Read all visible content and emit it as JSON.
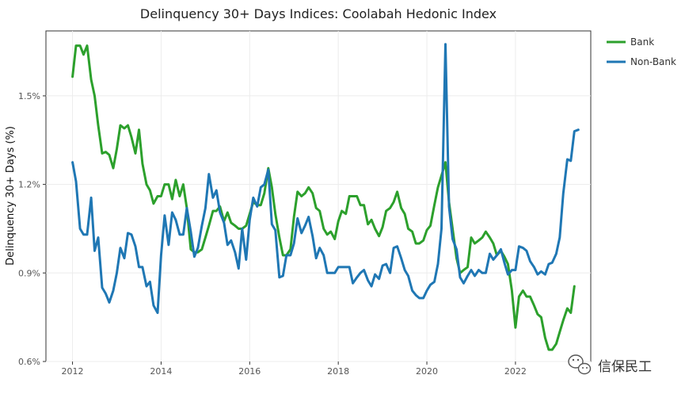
{
  "chart_data": {
    "type": "line",
    "title": "Delinquency 30+ Days Indices: Coolabah Hedonic Index",
    "xlabel": "",
    "ylabel": "Delinquency 30+ Days (%)",
    "xlim": [
      2011.4,
      2023.7
    ],
    "ylim": [
      0.6,
      1.72
    ],
    "x_ticks": [
      2012,
      2014,
      2016,
      2018,
      2020,
      2022
    ],
    "x_tick_labels": [
      "2012",
      "2014",
      "2016",
      "2018",
      "2020",
      "2022"
    ],
    "y_ticks": [
      0.6,
      0.9,
      1.2,
      1.5
    ],
    "y_tick_labels": [
      "0.6%",
      "0.9%",
      "1.2%",
      "1.5%"
    ],
    "grid": true,
    "legend_position": "top-right",
    "series": [
      {
        "name": "Bank",
        "color": "#2ca02c",
        "points": [
          [
            2012.0,
            1.565
          ],
          [
            2012.08,
            1.67
          ],
          [
            2012.17,
            1.67
          ],
          [
            2012.25,
            1.64
          ],
          [
            2012.33,
            1.67
          ],
          [
            2012.42,
            1.555
          ],
          [
            2012.5,
            1.5
          ],
          [
            2012.58,
            1.4
          ],
          [
            2012.67,
            1.305
          ],
          [
            2012.75,
            1.31
          ],
          [
            2012.83,
            1.3
          ],
          [
            2012.92,
            1.255
          ],
          [
            2013.0,
            1.32
          ],
          [
            2013.08,
            1.4
          ],
          [
            2013.17,
            1.39
          ],
          [
            2013.25,
            1.4
          ],
          [
            2013.33,
            1.36
          ],
          [
            2013.42,
            1.305
          ],
          [
            2013.5,
            1.385
          ],
          [
            2013.58,
            1.27
          ],
          [
            2013.67,
            1.2
          ],
          [
            2013.75,
            1.18
          ],
          [
            2013.83,
            1.135
          ],
          [
            2013.92,
            1.16
          ],
          [
            2014.0,
            1.16
          ],
          [
            2014.08,
            1.2
          ],
          [
            2014.17,
            1.2
          ],
          [
            2014.25,
            1.15
          ],
          [
            2014.33,
            1.215
          ],
          [
            2014.42,
            1.16
          ],
          [
            2014.5,
            1.2
          ],
          [
            2014.58,
            1.12
          ],
          [
            2014.67,
            0.98
          ],
          [
            2014.75,
            0.97
          ],
          [
            2014.83,
            0.97
          ],
          [
            2014.92,
            0.98
          ],
          [
            2015.0,
            1.02
          ],
          [
            2015.08,
            1.06
          ],
          [
            2015.17,
            1.11
          ],
          [
            2015.25,
            1.11
          ],
          [
            2015.33,
            1.125
          ],
          [
            2015.42,
            1.075
          ],
          [
            2015.5,
            1.105
          ],
          [
            2015.58,
            1.07
          ],
          [
            2015.67,
            1.06
          ],
          [
            2015.75,
            1.05
          ],
          [
            2015.83,
            1.05
          ],
          [
            2015.92,
            1.06
          ],
          [
            2016.0,
            1.1
          ],
          [
            2016.08,
            1.14
          ],
          [
            2016.17,
            1.13
          ],
          [
            2016.25,
            1.13
          ],
          [
            2016.33,
            1.17
          ],
          [
            2016.42,
            1.255
          ],
          [
            2016.5,
            1.19
          ],
          [
            2016.58,
            1.1
          ],
          [
            2016.67,
            1.02
          ],
          [
            2016.75,
            0.96
          ],
          [
            2016.83,
            0.96
          ],
          [
            2016.92,
            0.98
          ],
          [
            2017.0,
            1.09
          ],
          [
            2017.08,
            1.175
          ],
          [
            2017.17,
            1.16
          ],
          [
            2017.25,
            1.17
          ],
          [
            2017.33,
            1.19
          ],
          [
            2017.42,
            1.17
          ],
          [
            2017.5,
            1.12
          ],
          [
            2017.58,
            1.11
          ],
          [
            2017.67,
            1.05
          ],
          [
            2017.75,
            1.03
          ],
          [
            2017.83,
            1.04
          ],
          [
            2017.92,
            1.015
          ],
          [
            2018.0,
            1.075
          ],
          [
            2018.08,
            1.11
          ],
          [
            2018.17,
            1.1
          ],
          [
            2018.25,
            1.16
          ],
          [
            2018.33,
            1.16
          ],
          [
            2018.42,
            1.16
          ],
          [
            2018.5,
            1.13
          ],
          [
            2018.58,
            1.13
          ],
          [
            2018.67,
            1.065
          ],
          [
            2018.75,
            1.08
          ],
          [
            2018.83,
            1.05
          ],
          [
            2018.92,
            1.025
          ],
          [
            2019.0,
            1.055
          ],
          [
            2019.08,
            1.11
          ],
          [
            2019.17,
            1.12
          ],
          [
            2019.25,
            1.14
          ],
          [
            2019.33,
            1.175
          ],
          [
            2019.42,
            1.12
          ],
          [
            2019.5,
            1.1
          ],
          [
            2019.58,
            1.05
          ],
          [
            2019.67,
            1.04
          ],
          [
            2019.75,
            1.0
          ],
          [
            2019.83,
            1.0
          ],
          [
            2019.92,
            1.01
          ],
          [
            2020.0,
            1.045
          ],
          [
            2020.08,
            1.06
          ],
          [
            2020.17,
            1.13
          ],
          [
            2020.25,
            1.19
          ],
          [
            2020.33,
            1.23
          ],
          [
            2020.42,
            1.275
          ],
          [
            2020.5,
            1.14
          ],
          [
            2020.58,
            1.05
          ],
          [
            2020.67,
            0.95
          ],
          [
            2020.75,
            0.9
          ],
          [
            2020.83,
            0.91
          ],
          [
            2020.92,
            0.92
          ],
          [
            2021.0,
            1.02
          ],
          [
            2021.08,
            1.0
          ],
          [
            2021.17,
            1.01
          ],
          [
            2021.25,
            1.02
          ],
          [
            2021.33,
            1.04
          ],
          [
            2021.42,
            1.02
          ],
          [
            2021.5,
            1.0
          ],
          [
            2021.58,
            0.96
          ],
          [
            2021.67,
            0.975
          ],
          [
            2021.75,
            0.955
          ],
          [
            2021.83,
            0.93
          ],
          [
            2021.92,
            0.84
          ],
          [
            2022.0,
            0.715
          ],
          [
            2022.08,
            0.82
          ],
          [
            2022.17,
            0.84
          ],
          [
            2022.25,
            0.82
          ],
          [
            2022.33,
            0.82
          ],
          [
            2022.42,
            0.79
          ],
          [
            2022.5,
            0.76
          ],
          [
            2022.58,
            0.75
          ],
          [
            2022.67,
            0.68
          ],
          [
            2022.75,
            0.64
          ],
          [
            2022.83,
            0.64
          ],
          [
            2022.92,
            0.66
          ],
          [
            2023.0,
            0.7
          ],
          [
            2023.08,
            0.74
          ],
          [
            2023.17,
            0.78
          ],
          [
            2023.25,
            0.765
          ],
          [
            2023.33,
            0.855
          ]
        ]
      },
      {
        "name": "Non-Bank",
        "color": "#1f77b4",
        "points": [
          [
            2012.0,
            1.275
          ],
          [
            2012.08,
            1.21
          ],
          [
            2012.17,
            1.05
          ],
          [
            2012.25,
            1.03
          ],
          [
            2012.33,
            1.03
          ],
          [
            2012.42,
            1.155
          ],
          [
            2012.5,
            0.975
          ],
          [
            2012.58,
            1.02
          ],
          [
            2012.67,
            0.85
          ],
          [
            2012.75,
            0.83
          ],
          [
            2012.83,
            0.8
          ],
          [
            2012.92,
            0.84
          ],
          [
            2013.0,
            0.9
          ],
          [
            2013.08,
            0.985
          ],
          [
            2013.17,
            0.95
          ],
          [
            2013.25,
            1.035
          ],
          [
            2013.33,
            1.03
          ],
          [
            2013.42,
            0.99
          ],
          [
            2013.5,
            0.92
          ],
          [
            2013.58,
            0.92
          ],
          [
            2013.67,
            0.855
          ],
          [
            2013.75,
            0.87
          ],
          [
            2013.83,
            0.79
          ],
          [
            2013.92,
            0.765
          ],
          [
            2014.0,
            0.96
          ],
          [
            2014.08,
            1.095
          ],
          [
            2014.17,
            0.995
          ],
          [
            2014.25,
            1.105
          ],
          [
            2014.33,
            1.08
          ],
          [
            2014.42,
            1.03
          ],
          [
            2014.5,
            1.03
          ],
          [
            2014.58,
            1.12
          ],
          [
            2014.67,
            1.04
          ],
          [
            2014.75,
            0.955
          ],
          [
            2014.83,
            0.985
          ],
          [
            2014.92,
            1.06
          ],
          [
            2015.0,
            1.12
          ],
          [
            2015.08,
            1.235
          ],
          [
            2015.17,
            1.155
          ],
          [
            2015.25,
            1.18
          ],
          [
            2015.33,
            1.105
          ],
          [
            2015.42,
            1.07
          ],
          [
            2015.5,
            0.995
          ],
          [
            2015.58,
            1.01
          ],
          [
            2015.67,
            0.97
          ],
          [
            2015.75,
            0.915
          ],
          [
            2015.83,
            1.05
          ],
          [
            2015.92,
            0.945
          ],
          [
            2016.0,
            1.08
          ],
          [
            2016.08,
            1.155
          ],
          [
            2016.17,
            1.125
          ],
          [
            2016.25,
            1.19
          ],
          [
            2016.33,
            1.2
          ],
          [
            2016.42,
            1.25
          ],
          [
            2016.5,
            1.065
          ],
          [
            2016.58,
            1.045
          ],
          [
            2016.67,
            0.885
          ],
          [
            2016.75,
            0.89
          ],
          [
            2016.83,
            0.96
          ],
          [
            2016.92,
            0.96
          ],
          [
            2017.0,
            1.0
          ],
          [
            2017.08,
            1.085
          ],
          [
            2017.17,
            1.035
          ],
          [
            2017.25,
            1.06
          ],
          [
            2017.33,
            1.09
          ],
          [
            2017.42,
            1.025
          ],
          [
            2017.5,
            0.95
          ],
          [
            2017.58,
            0.985
          ],
          [
            2017.67,
            0.96
          ],
          [
            2017.75,
            0.9
          ],
          [
            2017.83,
            0.9
          ],
          [
            2017.92,
            0.9
          ],
          [
            2018.0,
            0.92
          ],
          [
            2018.08,
            0.92
          ],
          [
            2018.17,
            0.92
          ],
          [
            2018.25,
            0.92
          ],
          [
            2018.33,
            0.865
          ],
          [
            2018.42,
            0.885
          ],
          [
            2018.5,
            0.9
          ],
          [
            2018.58,
            0.91
          ],
          [
            2018.67,
            0.875
          ],
          [
            2018.75,
            0.855
          ],
          [
            2018.83,
            0.895
          ],
          [
            2018.92,
            0.88
          ],
          [
            2019.0,
            0.925
          ],
          [
            2019.08,
            0.93
          ],
          [
            2019.17,
            0.9
          ],
          [
            2019.25,
            0.985
          ],
          [
            2019.33,
            0.99
          ],
          [
            2019.42,
            0.95
          ],
          [
            2019.5,
            0.91
          ],
          [
            2019.58,
            0.89
          ],
          [
            2019.67,
            0.84
          ],
          [
            2019.75,
            0.825
          ],
          [
            2019.83,
            0.815
          ],
          [
            2019.92,
            0.815
          ],
          [
            2020.0,
            0.84
          ],
          [
            2020.08,
            0.86
          ],
          [
            2020.17,
            0.87
          ],
          [
            2020.25,
            0.93
          ],
          [
            2020.33,
            1.05
          ],
          [
            2020.42,
            1.675
          ],
          [
            2020.5,
            1.125
          ],
          [
            2020.58,
            1.015
          ],
          [
            2020.67,
            0.98
          ],
          [
            2020.75,
            0.885
          ],
          [
            2020.83,
            0.865
          ],
          [
            2020.92,
            0.89
          ],
          [
            2021.0,
            0.91
          ],
          [
            2021.08,
            0.89
          ],
          [
            2021.17,
            0.91
          ],
          [
            2021.25,
            0.9
          ],
          [
            2021.33,
            0.9
          ],
          [
            2021.42,
            0.965
          ],
          [
            2021.5,
            0.945
          ],
          [
            2021.58,
            0.96
          ],
          [
            2021.67,
            0.98
          ],
          [
            2021.75,
            0.935
          ],
          [
            2021.83,
            0.895
          ],
          [
            2021.92,
            0.91
          ],
          [
            2022.0,
            0.91
          ],
          [
            2022.08,
            0.99
          ],
          [
            2022.17,
            0.985
          ],
          [
            2022.25,
            0.975
          ],
          [
            2022.33,
            0.94
          ],
          [
            2022.42,
            0.92
          ],
          [
            2022.5,
            0.895
          ],
          [
            2022.58,
            0.905
          ],
          [
            2022.67,
            0.895
          ],
          [
            2022.75,
            0.93
          ],
          [
            2022.83,
            0.935
          ],
          [
            2022.92,
            0.965
          ],
          [
            2023.0,
            1.02
          ],
          [
            2023.08,
            1.17
          ],
          [
            2023.17,
            1.285
          ],
          [
            2023.25,
            1.28
          ],
          [
            2023.33,
            1.38
          ],
          [
            2023.42,
            1.385
          ]
        ]
      }
    ]
  },
  "watermark": {
    "text": "信保民工",
    "icon": "wechat-icon"
  }
}
